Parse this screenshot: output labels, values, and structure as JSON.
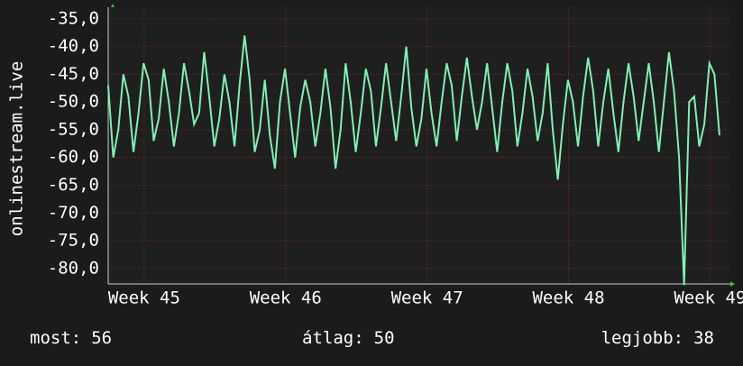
{
  "chart_data": {
    "type": "line",
    "y_label": "onlinestream.live",
    "x": [
      0,
      0.25,
      0.5,
      0.75,
      1,
      1.25,
      1.5,
      1.75,
      2,
      2.25,
      2.5,
      2.75,
      3,
      3.25,
      3.5,
      3.75,
      4,
      4.25,
      4.5,
      4.75,
      5,
      5.25,
      5.5,
      5.75,
      6,
      6.25,
      6.5,
      6.75,
      7,
      7.25,
      7.5,
      7.75,
      8,
      8.25,
      8.5,
      8.75,
      9,
      9.25,
      9.5,
      9.75,
      10,
      10.25,
      10.5,
      10.75,
      11,
      11.25,
      11.5,
      11.75,
      12,
      12.25,
      12.5,
      12.75,
      13,
      13.25,
      13.5,
      13.75,
      14,
      14.25,
      14.5,
      14.75,
      15,
      15.25,
      15.5,
      15.75,
      16,
      16.25,
      16.5,
      16.75,
      17,
      17.25,
      17.5,
      17.75,
      18,
      18.25,
      18.5,
      18.75,
      19,
      19.25,
      19.5,
      19.75,
      20,
      20.25,
      20.5,
      20.75,
      21,
      21.25,
      21.5,
      21.75,
      22,
      22.25,
      22.5,
      22.75,
      23,
      23.25,
      23.5,
      23.75,
      24,
      24.25,
      24.5,
      24.75,
      25,
      25.25,
      25.5,
      25.75,
      26,
      26.25,
      26.5,
      26.75,
      27,
      27.25,
      27.5,
      27.75,
      28,
      28.25,
      28.5,
      28.75,
      29,
      29.25,
      29.5,
      29.75,
      30,
      30.25
    ],
    "series": [
      {
        "color": "#7ff0b4",
        "values": [
          -47,
          -60,
          -55,
          -45,
          -49,
          -59,
          -52,
          -43,
          -46,
          -57,
          -53,
          -44,
          -50,
          -58,
          -52,
          -43,
          -48,
          -54,
          -52,
          -41,
          -49,
          -58,
          -53,
          -45,
          -50,
          -58,
          -47,
          -38,
          -46,
          -59,
          -55,
          -46,
          -56,
          -62,
          -50,
          -44,
          -52,
          -60,
          -51,
          -46,
          -50,
          -58,
          -52,
          -44,
          -51,
          -62,
          -55,
          -43,
          -50,
          -59,
          -52,
          -44,
          -48,
          -58,
          -51,
          -43,
          -50,
          -57,
          -49,
          -40,
          -51,
          -58,
          -53,
          -44,
          -52,
          -58,
          -50,
          -43,
          -47,
          -57,
          -49,
          -42,
          -49,
          -55,
          -50,
          -43,
          -51,
          -59,
          -50,
          -43,
          -48,
          -58,
          -52,
          -44,
          -49,
          -57,
          -52,
          -43,
          -55,
          -64,
          -54,
          -46,
          -50,
          -58,
          -49,
          -42,
          -48,
          -58,
          -50,
          -44,
          -52,
          -59,
          -50,
          -43,
          -49,
          -57,
          -50,
          -43,
          -50,
          -59,
          -50,
          -41,
          -48,
          -60,
          -83,
          -50,
          -49,
          -58,
          -54,
          -43,
          -45,
          -56
        ]
      }
    ],
    "xlim": [
      0,
      30.7
    ],
    "xticks": [
      {
        "value": 1.78,
        "label": "Week 45"
      },
      {
        "value": 8.78,
        "label": "Week 46"
      },
      {
        "value": 15.78,
        "label": "Week 47"
      },
      {
        "value": 22.78,
        "label": "Week 48"
      },
      {
        "value": 29.78,
        "label": "Week 49"
      }
    ],
    "ylim": [
      -82.8,
      -32.9
    ],
    "yticks": [
      {
        "value": -35,
        "label": "-35,0"
      },
      {
        "value": -40,
        "label": "-40,0"
      },
      {
        "value": -45,
        "label": "-45,0"
      },
      {
        "value": -50,
        "label": "-50,0"
      },
      {
        "value": -55,
        "label": "-55,0"
      },
      {
        "value": -60,
        "label": "-60,0"
      },
      {
        "value": -65,
        "label": "-65,0"
      },
      {
        "value": -70,
        "label": "-70,0"
      },
      {
        "value": -75,
        "label": "-75,0"
      },
      {
        "value": -80,
        "label": "-80,0"
      }
    ],
    "grid": true,
    "stats": [
      {
        "label": "most:",
        "value": 56
      },
      {
        "label": "átlag:",
        "value": 50
      },
      {
        "label": "legjobb:",
        "value": 38
      }
    ]
  }
}
